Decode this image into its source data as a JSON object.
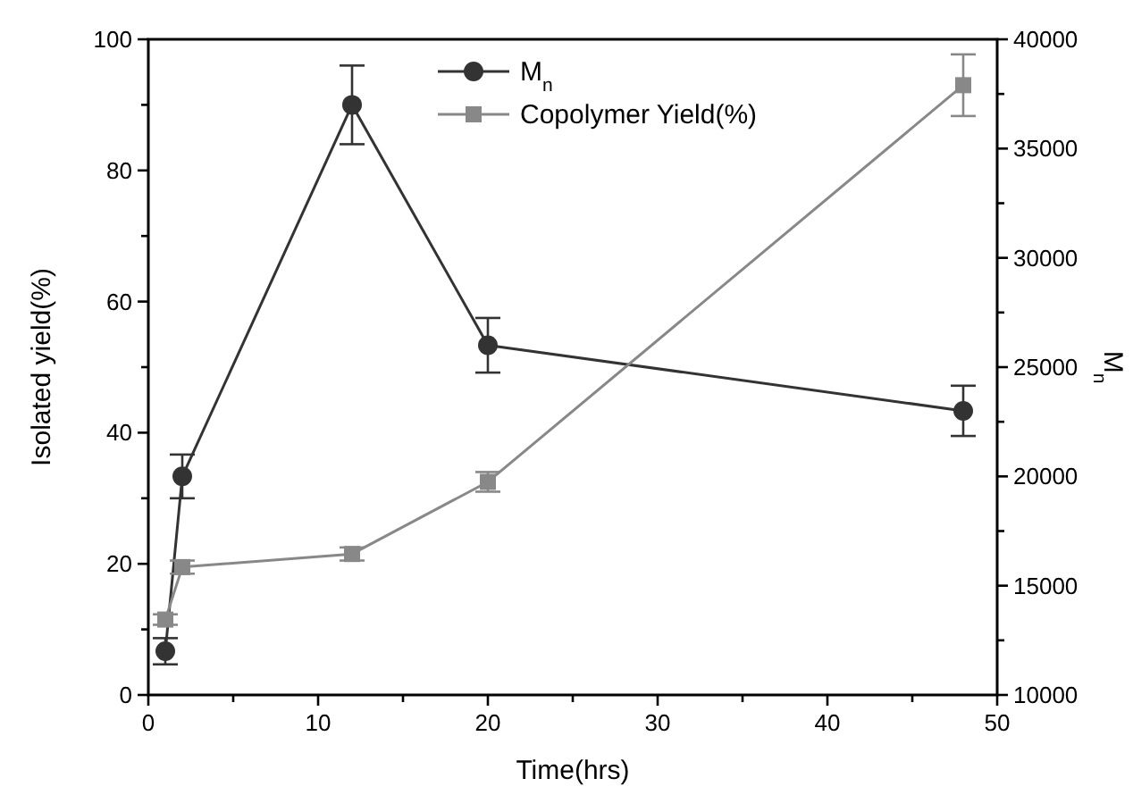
{
  "chart_data": {
    "type": "line",
    "xlabel": "Time(hrs)",
    "ylabel": "Isolated yield(%)",
    "y2label": "M$_{n}$",
    "xlim": [
      0,
      50
    ],
    "xticks": [
      0,
      {
        "value": 5,
        "label": null
      },
      10,
      {
        "value": 15,
        "label": null
      },
      20,
      {
        "value": 25,
        "label": null
      },
      30,
      {
        "value": 35,
        "label": null
      },
      40,
      {
        "value": 45,
        "label": null
      },
      50
    ],
    "ylim": [
      0,
      100
    ],
    "yticks": [
      0,
      {
        "value": 10,
        "label": null
      },
      20,
      {
        "value": 30,
        "label": null
      },
      40,
      {
        "value": 50,
        "label": null
      },
      60,
      {
        "value": 70,
        "label": null
      },
      80,
      {
        "value": 90,
        "label": null
      },
      100
    ],
    "y2lim": [
      10000,
      40000
    ],
    "y2ticks": [
      10000,
      {
        "value": 12500,
        "label": null
      },
      15000,
      {
        "value": 17500,
        "label": null
      },
      20000,
      {
        "value": 22500,
        "label": null
      },
      25000,
      {
        "value": 27500,
        "label": null
      },
      30000,
      {
        "value": 32500,
        "label": null
      },
      35000,
      {
        "value": 37500,
        "label": null
      },
      40000
    ],
    "legend": "top",
    "grid": false,
    "series": [
      {
        "name": "M$_{n}$",
        "color": "#333333",
        "axis": "y2",
        "marker": "circle",
        "x": [
          1,
          2,
          12,
          20,
          48
        ],
        "values": [
          12000,
          20000,
          37000,
          26000,
          23000
        ],
        "errors": [
          600,
          1000,
          1800,
          1250,
          1150
        ]
      },
      {
        "name": "Copolymer Yield(%)",
        "color": "#888888",
        "axis": "y",
        "marker": "square",
        "x": [
          1,
          2,
          12,
          20,
          48
        ],
        "values": [
          11.5,
          19.5,
          21.5,
          32.5,
          93
        ],
        "errors": [
          0.8,
          1,
          1,
          1.5,
          4.7
        ]
      }
    ]
  }
}
